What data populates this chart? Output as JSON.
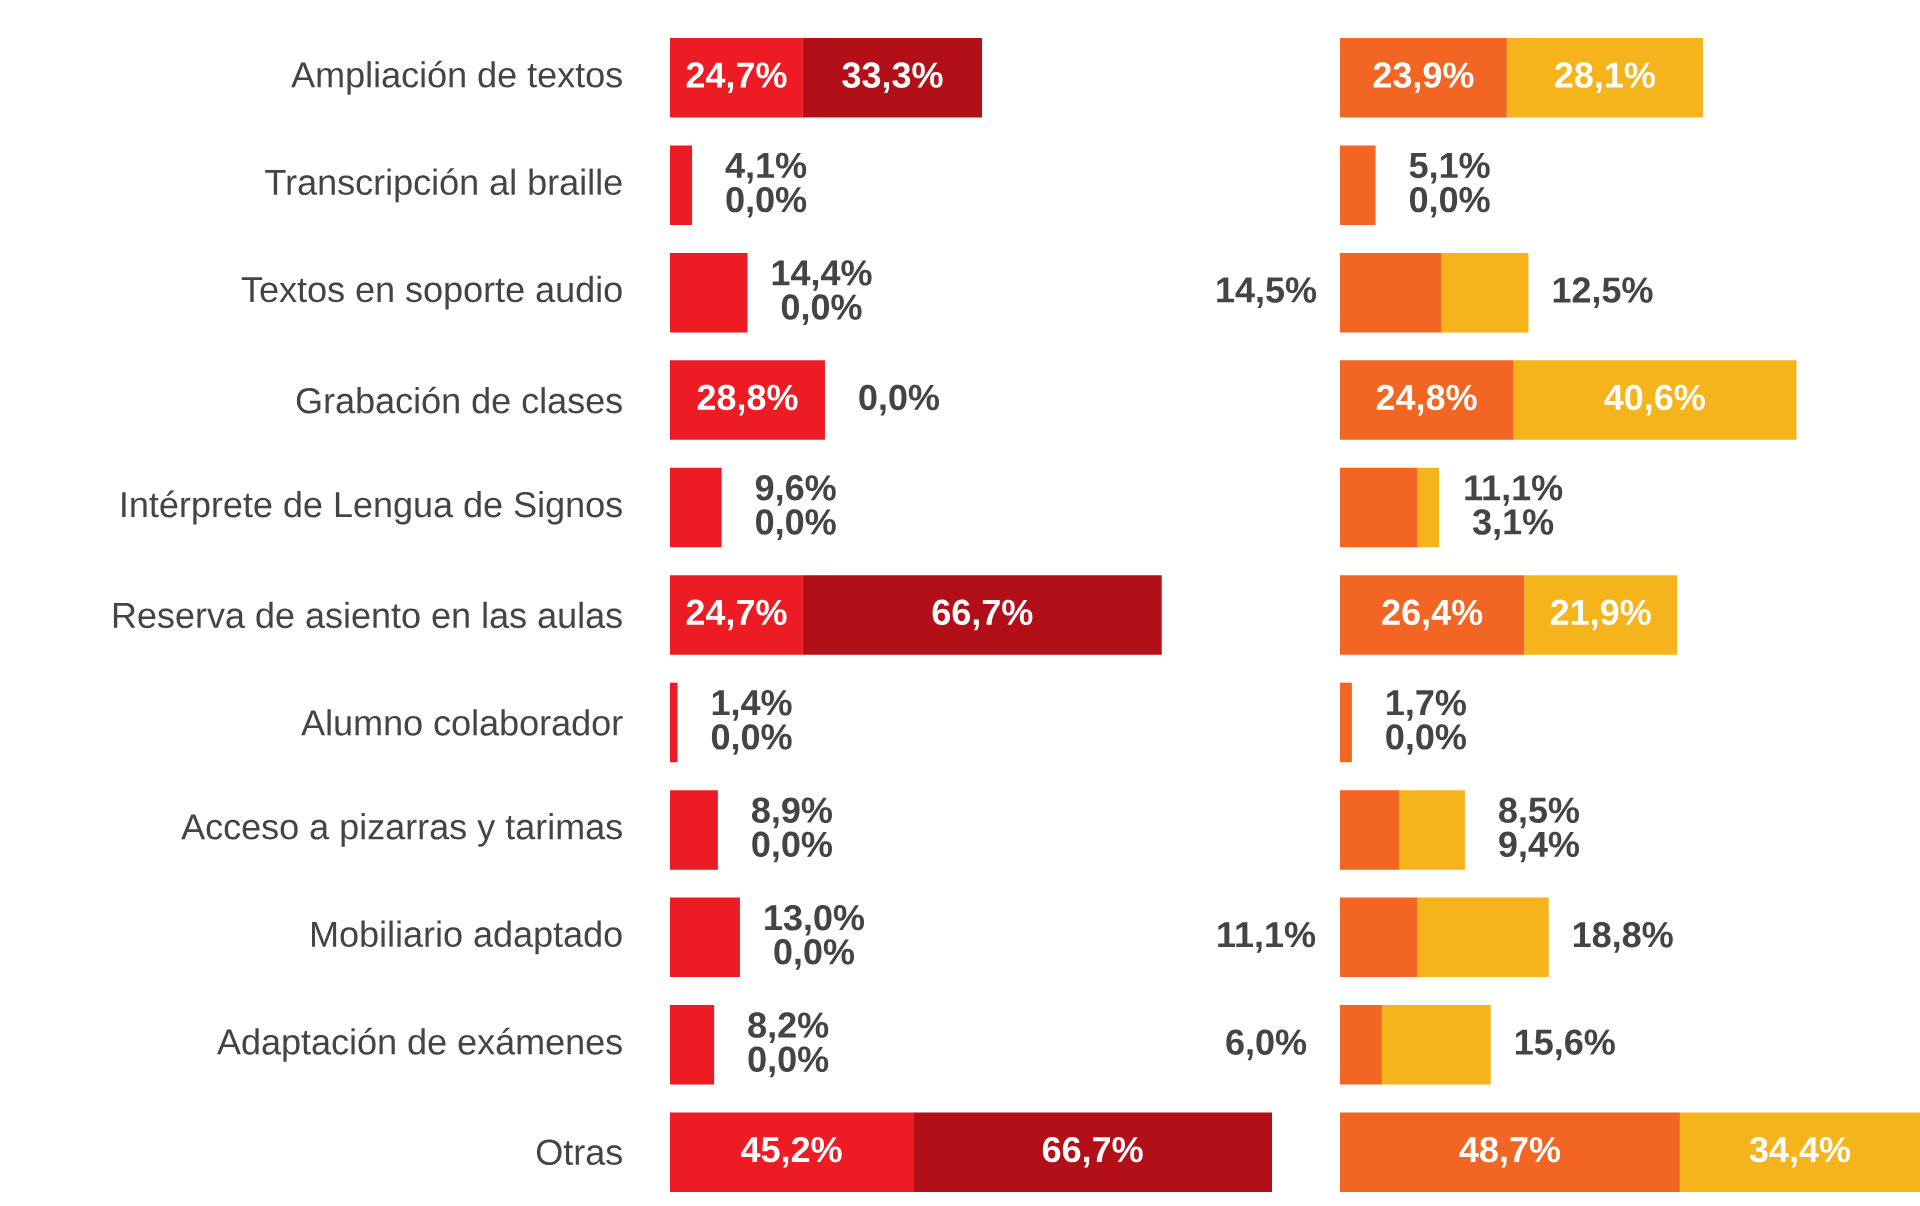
{
  "chart_data": [
    {
      "type": "bar",
      "orientation": "horizontal",
      "stacked": true,
      "tick_labels": "y",
      "categories": [
        "Ampliación de textos",
        "Transcripción al braille",
        "Textos en soporte audio",
        "Grabación de clases",
        "Intérprete de Lengua de Signos",
        "Reserva de asiento en las aulas",
        "Alumno colaborador",
        "Acceso a pizarras y tarimas",
        "Mobiliario adaptado",
        "Adaptación de exámenes",
        "Otras"
      ],
      "series": [
        {
          "color": "#ed1c24",
          "values": [
            24.7,
            4.1,
            14.4,
            28.8,
            9.6,
            24.7,
            1.4,
            8.9,
            13.0,
            8.2,
            45.2
          ],
          "value_labels": [
            "24,7%",
            "4,1%",
            "14,4%",
            "28,8%",
            "9,6%",
            "24,7%",
            "1,4%",
            "8,9%",
            "13,0%",
            "8,2%",
            "45,2%"
          ]
        },
        {
          "color": "#b20f18",
          "values": [
            33.3,
            0.0,
            0.0,
            0.0,
            0.0,
            66.7,
            0.0,
            0.0,
            0.0,
            0.0,
            66.7
          ],
          "value_labels": [
            "33,3%",
            "0,0%",
            "0,0%",
            "0,0%",
            "0,0%",
            "66,7%",
            "0,0%",
            "0,0%",
            "0,0%",
            "0,0%",
            "66,7%"
          ]
        }
      ]
    },
    {
      "type": "bar",
      "orientation": "horizontal",
      "stacked": true,
      "tick_labels": false,
      "categories": [
        null,
        null,
        null,
        null,
        null,
        null,
        null,
        null,
        null,
        null,
        null
      ],
      "series": [
        {
          "color": "#f26522",
          "values": [
            23.9,
            5.1,
            14.5,
            24.8,
            11.1,
            26.4,
            1.7,
            8.5,
            11.1,
            6.0,
            48.7
          ],
          "value_labels": [
            "23,9%",
            "5,1%",
            "14,5%",
            "24,8%",
            "11,1%",
            "26,4%",
            "1,7%",
            "8,5%",
            "11,1%",
            "6,0%",
            "48,7%"
          ]
        },
        {
          "color": "#f5b31c",
          "values": [
            28.1,
            0.0,
            12.5,
            40.6,
            3.1,
            21.9,
            0.0,
            9.4,
            18.8,
            15.6,
            34.4
          ],
          "value_labels": [
            "28,1%",
            "0,0%",
            "12,5%",
            "40,6%",
            "3,1%",
            "21,9%",
            "0,0%",
            "9,4%",
            "18,8%",
            "15,6%",
            "34,4%"
          ]
        }
      ]
    }
  ]
}
